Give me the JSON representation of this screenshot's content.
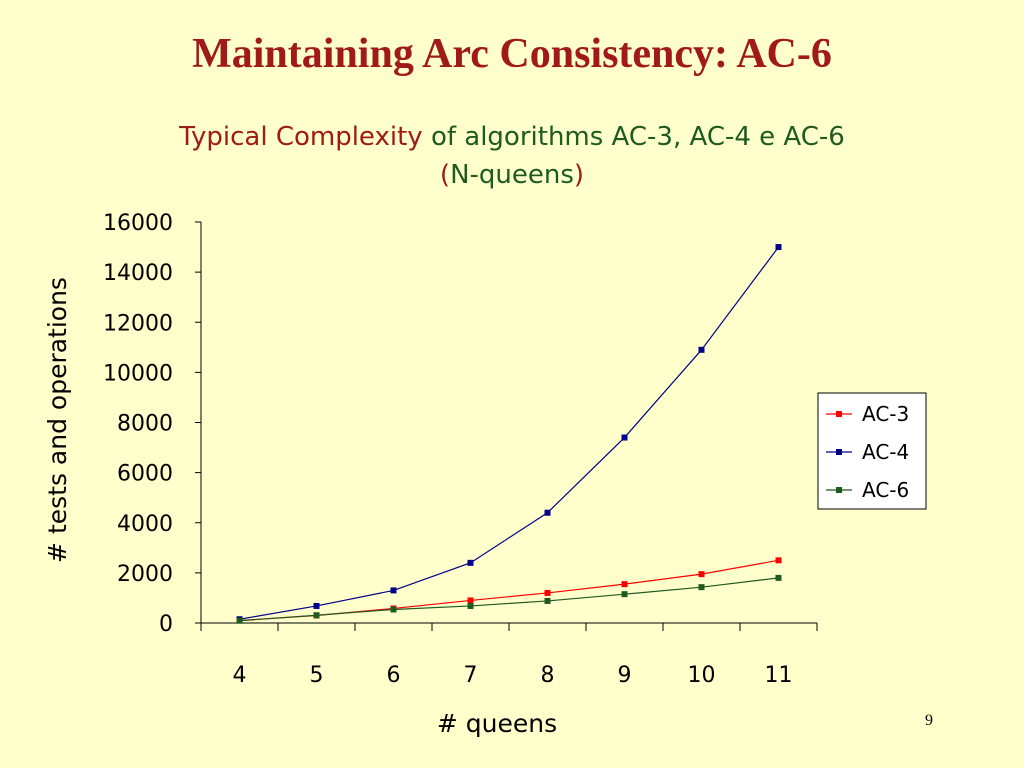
{
  "slide": {
    "title": "Maintaining Arc Consistency: AC-6",
    "page_number": "9"
  },
  "chart_data": {
    "type": "line",
    "title_parts": {
      "red": "Typical Complexity",
      "green_1": "of algorithms AC-3, AC-4 e AC-6",
      "red_paren_open": "(",
      "green_2": "N-queens",
      "red_paren_close": ")"
    },
    "xlabel": "# queens",
    "ylabel": "# tests and operations",
    "categories": [
      "4",
      "5",
      "6",
      "7",
      "8",
      "9",
      "10",
      "11"
    ],
    "ylim": [
      0,
      16000
    ],
    "yticks": [
      "0",
      "2000",
      "4000",
      "6000",
      "8000",
      "10000",
      "12000",
      "14000",
      "16000"
    ],
    "legend_position": "right",
    "grid": false,
    "series": [
      {
        "name": "AC-3",
        "color": "#ff0000",
        "values": [
          100,
          300,
          580,
          900,
          1200,
          1550,
          1950,
          2500
        ]
      },
      {
        "name": "AC-4",
        "color": "#00008b",
        "values": [
          150,
          680,
          1300,
          2400,
          4400,
          7400,
          10900,
          15000
        ]
      },
      {
        "name": "AC-6",
        "color": "#1f5a1f",
        "values": [
          90,
          310,
          540,
          680,
          880,
          1150,
          1430,
          1800
        ]
      }
    ]
  }
}
